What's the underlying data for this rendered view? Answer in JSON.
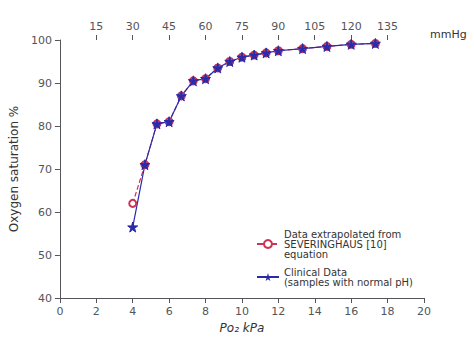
{
  "chart_data": {
    "type": "line",
    "xlabel": "Po₂ kPa",
    "ylabel": "Oxygen saturation %",
    "xlim": [
      0,
      20
    ],
    "xticks": [
      0,
      2,
      4,
      6,
      8,
      10,
      12,
      14,
      16,
      18,
      20
    ],
    "ylim": [
      40,
      100
    ],
    "yticks": [
      40,
      50,
      60,
      70,
      80,
      90,
      100
    ],
    "x2lim": [
      0,
      20
    ],
    "x2label": "mmHg",
    "x2ticks": [
      {
        "value": 1.99984,
        "label": "15"
      },
      {
        "value": 3.99968,
        "label": "30"
      },
      {
        "value": 5.99952,
        "label": "45"
      },
      {
        "value": 7.99936,
        "label": "60"
      },
      {
        "value": 9.9992,
        "label": "75"
      },
      {
        "value": 11.99904,
        "label": "90"
      },
      {
        "value": 13.99888,
        "label": "105"
      },
      {
        "value": 15.99872,
        "label": "120"
      },
      {
        "value": 17.99856,
        "label": "135"
      }
    ],
    "grid": false,
    "legend": "lower right",
    "series": [
      {
        "name": "Data extrapolated from\nSEVERINGHAUS [10]\nequation",
        "color": "#cc3355",
        "marker": "open_circle",
        "line_style": "dashed",
        "x": [
          4.0,
          4.67,
          5.33,
          6.0,
          6.67,
          7.33,
          8.0,
          8.67,
          9.33,
          10.0,
          10.67,
          11.33,
          12.0,
          13.33,
          14.67,
          16.0,
          17.33
        ],
        "values": [
          62.0,
          71.0,
          80.5,
          81.0,
          87.0,
          90.5,
          91.0,
          93.5,
          95.0,
          96.0,
          96.5,
          97.0,
          97.5,
          98.0,
          98.5,
          99.0,
          99.2
        ]
      },
      {
        "name": "Clinical Data\n(samples with normal pH)",
        "color": "#2a2aaa",
        "marker": "star",
        "line_style": "solid",
        "x": [
          4.0,
          4.67,
          5.33,
          6.0,
          6.67,
          7.33,
          8.0,
          8.67,
          9.33,
          10.0,
          10.67,
          11.33,
          12.0,
          13.33,
          14.67,
          16.0,
          17.33
        ],
        "values": [
          56.5,
          71.0,
          80.5,
          81.0,
          87.0,
          90.5,
          91.0,
          93.5,
          95.0,
          96.0,
          96.5,
          97.0,
          97.5,
          98.0,
          98.5,
          99.0,
          99.2
        ]
      }
    ]
  }
}
